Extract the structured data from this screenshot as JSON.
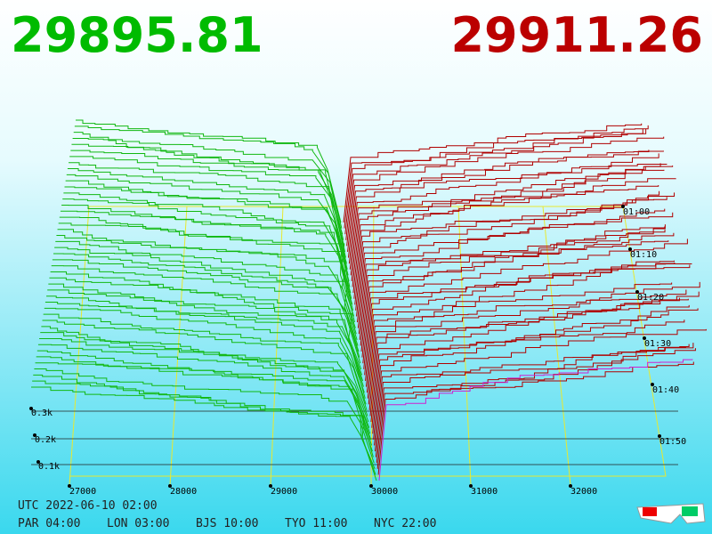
{
  "header": {
    "bid_price": "29895.81",
    "ask_price": "29911.26"
  },
  "price_axis": [
    "27000",
    "28000",
    "29000",
    "30000",
    "31000",
    "32000"
  ],
  "time_axis": [
    "01:00",
    "01:10",
    "01:20",
    "01:30",
    "01:40",
    "01:50"
  ],
  "volume_axis": [
    "0.3k",
    "0.2k",
    "0.1k"
  ],
  "footer": {
    "utc": "UTC 2022-06-10 02:00",
    "clocks": [
      "PAR 04:00",
      "LON 03:00",
      "BJS 10:00",
      "TYO 11:00",
      "NYC 22:00"
    ]
  }
}
